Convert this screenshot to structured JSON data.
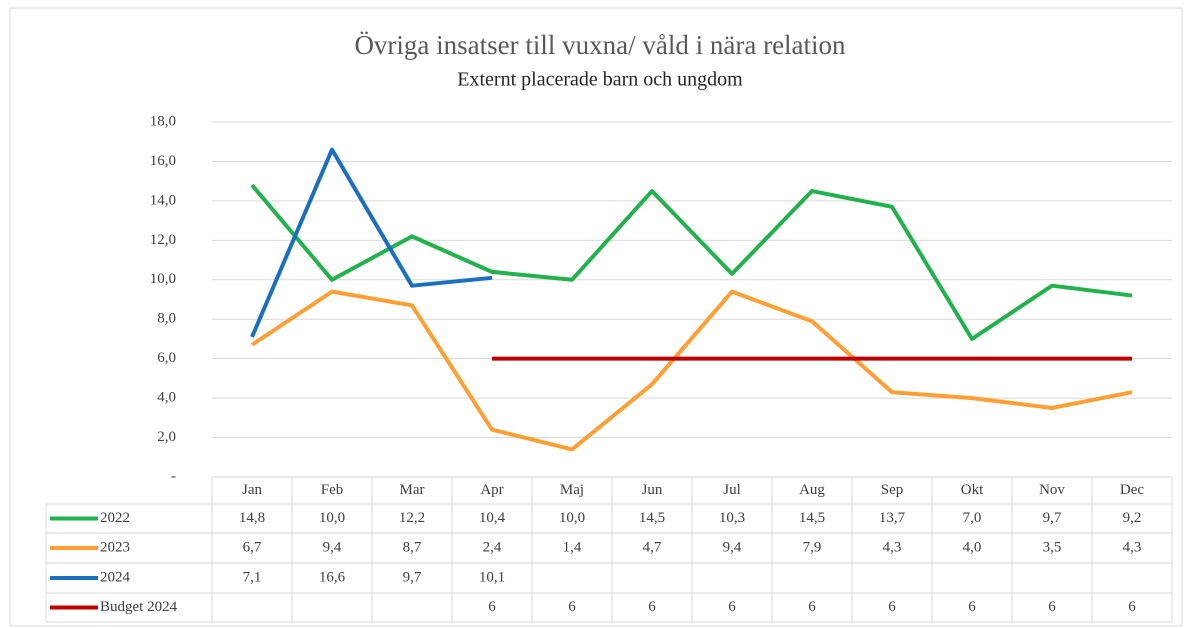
{
  "chart_data": {
    "type": "line",
    "title": "Övriga insatser till vuxna/ våld i nära relation",
    "subtitle": "Externt placerade barn och ungdom",
    "categories": [
      "Jan",
      "Feb",
      "Mar",
      "Apr",
      "Maj",
      "Jun",
      "Jul",
      "Aug",
      "Sep",
      "Okt",
      "Nov",
      "Dec"
    ],
    "series": [
      {
        "name": "2022",
        "color": "#21b24b",
        "values": [
          14.8,
          10.0,
          12.2,
          10.4,
          10.0,
          14.5,
          10.3,
          14.5,
          13.7,
          7.0,
          9.7,
          9.2
        ],
        "value_labels": [
          "14,8",
          "10,0",
          "12,2",
          "10,4",
          "10,0",
          "14,5",
          "10,3",
          "14,5",
          "13,7",
          "7,0",
          "9,7",
          "9,2"
        ]
      },
      {
        "name": "2023",
        "color": "#ff9f33",
        "values": [
          6.7,
          9.4,
          8.7,
          2.4,
          1.4,
          4.7,
          9.4,
          7.9,
          4.3,
          4.0,
          3.5,
          4.3
        ],
        "value_labels": [
          "6,7",
          "9,4",
          "8,7",
          "2,4",
          "1,4",
          "4,7",
          "9,4",
          "7,9",
          "4,3",
          "4,0",
          "3,5",
          "4,3"
        ]
      },
      {
        "name": "2024",
        "color": "#1b6fc2",
        "values": [
          7.1,
          16.6,
          9.7,
          10.1,
          null,
          null,
          null,
          null,
          null,
          null,
          null,
          null
        ],
        "value_labels": [
          "7,1",
          "16,6",
          "9,7",
          "10,1",
          null,
          null,
          null,
          null,
          null,
          null,
          null,
          null
        ]
      },
      {
        "name": "Budget 2024",
        "color": "#c00000",
        "values": [
          null,
          null,
          null,
          6,
          6,
          6,
          6,
          6,
          6,
          6,
          6,
          6
        ]
      }
    ],
    "ylim": [
      0,
      18
    ],
    "yticks": [
      {
        "value": 0,
        "label": "-"
      },
      {
        "value": 2,
        "label": "2,0"
      },
      {
        "value": 4,
        "label": "4,0"
      },
      {
        "value": 6,
        "label": "6,0"
      },
      {
        "value": 8,
        "label": "8,0"
      },
      {
        "value": 10,
        "label": "10,0"
      },
      {
        "value": 12,
        "label": "12,0"
      },
      {
        "value": 14,
        "label": "14,0"
      },
      {
        "value": 16,
        "label": "16,0"
      },
      {
        "value": 18,
        "label": "18,0"
      }
    ],
    "grid": true
  }
}
